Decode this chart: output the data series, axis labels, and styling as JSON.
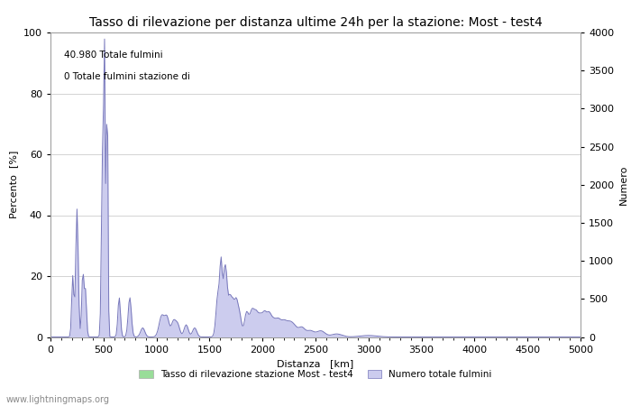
{
  "title": "Tasso di rilevazione per distanza ultime 24h per la stazione: Most - test4",
  "xlabel": "Distanza   [km]",
  "ylabel_left": "Percento  [%]",
  "ylabel_right": "Numero",
  "annotation_line1": "40.980 Totale fulmini",
  "annotation_line2": "0 Totale fulmini stazione di",
  "legend_entry1": "Tasso di rilevazione stazione Most - test4",
  "legend_entry2": "Numero totale fulmini",
  "watermark": "www.lightningmaps.org",
  "xlim": [
    0,
    5000
  ],
  "ylim_left": [
    0,
    100
  ],
  "ylim_right": [
    0,
    4000
  ],
  "xticks": [
    0,
    500,
    1000,
    1500,
    2000,
    2500,
    3000,
    3500,
    4000,
    4500,
    5000
  ],
  "yticks_left": [
    0,
    20,
    40,
    60,
    80,
    100
  ],
  "yticks_right": [
    0,
    500,
    1000,
    1500,
    2000,
    2500,
    3000,
    3500,
    4000
  ],
  "line_color": "#7777bb",
  "fill_color": "#ccccee",
  "background_color": "#ffffff",
  "grid_color": "#cccccc",
  "title_fontsize": 10,
  "label_fontsize": 8,
  "tick_fontsize": 8,
  "legend_color1": "#99dd99",
  "legend_color2": "#ccccee"
}
